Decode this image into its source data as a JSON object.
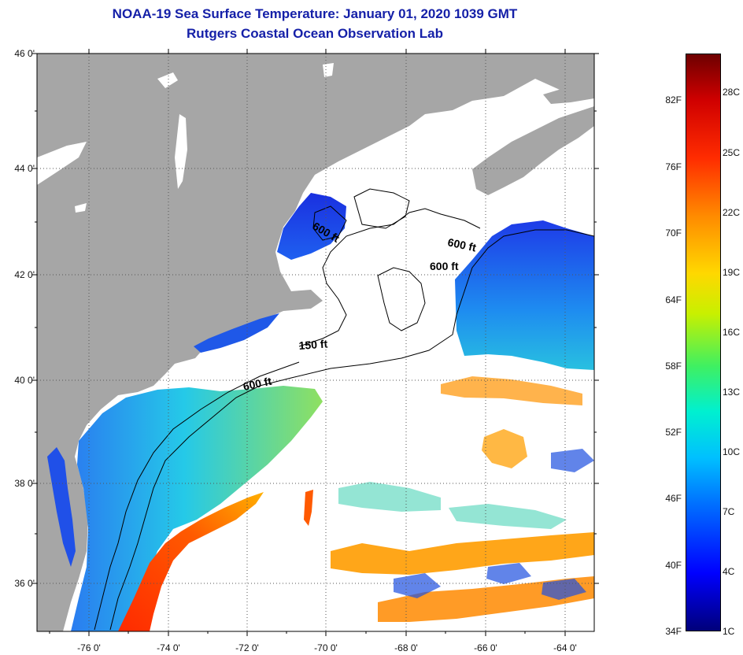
{
  "title": {
    "line1": "NOAA-19 Sea Surface Temperature:  January 01, 2020 1039 GMT",
    "line2": "Rutgers Coastal Ocean Observation Lab"
  },
  "map": {
    "lat_labels": [
      "46 0'",
      "44 0'",
      "42 0'",
      "40 0'",
      "38 0'",
      "36 0'"
    ],
    "lon_labels": [
      "-76 0'",
      "-74 0'",
      "-72 0'",
      "-70 0'",
      "-68 0'",
      "-66 0'",
      "-64 0'"
    ],
    "contour_labels": {
      "c1": "600 ft",
      "c2": "600 ft",
      "c3": "600 ft",
      "c4": "150 ft",
      "c5": "600 ft"
    },
    "colors": {
      "land": "#a6a6a6",
      "cloud": "#ffffff",
      "cold": "#1a3de0",
      "mid": "#30d8c0",
      "warm": "#ff9a00",
      "hot": "#ff2a00"
    }
  },
  "colorbar": {
    "fahrenheit": [
      "82F",
      "76F",
      "70F",
      "64F",
      "58F",
      "52F",
      "46F",
      "40F",
      "34F"
    ],
    "celsius": [
      "28C",
      "25C",
      "22C",
      "19C",
      "16C",
      "13C",
      "10C",
      "7C",
      "4C",
      "1C"
    ]
  }
}
